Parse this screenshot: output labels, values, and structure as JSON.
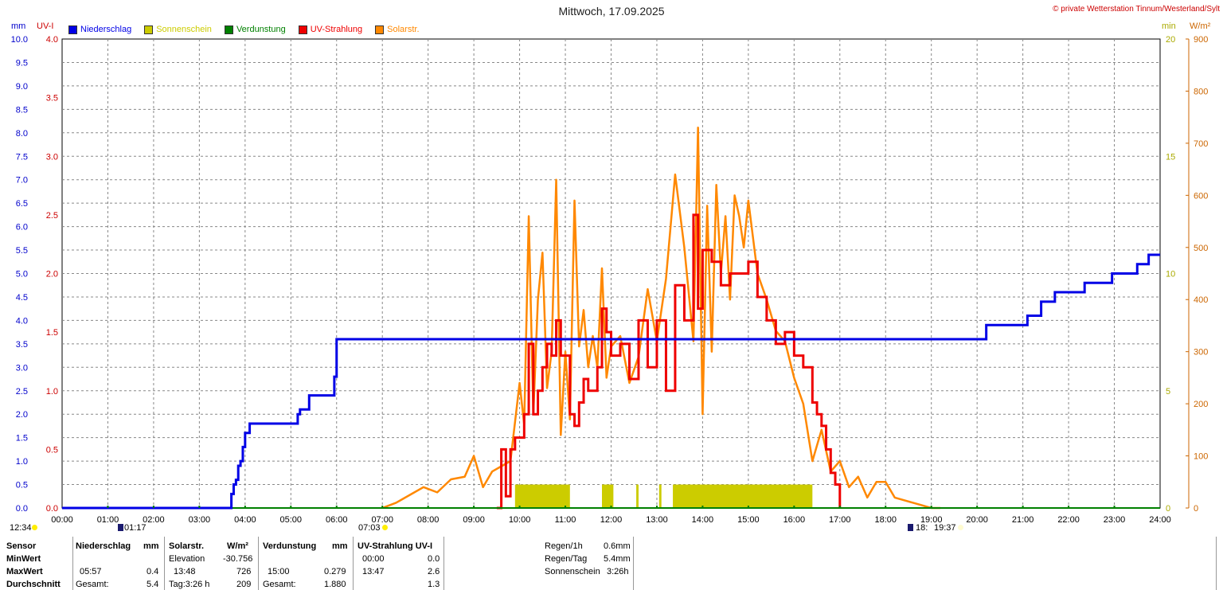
{
  "title": "Mittwoch, 17.09.2025",
  "copyright": "© private Wetterstation Tinnum/Westerland/Sylt",
  "legend": [
    {
      "label": "Niederschlag",
      "color": "#0000e6",
      "text_color": "#0000e6"
    },
    {
      "label": "Sonnenschein",
      "color": "#cccc00",
      "text_color": "#cccc00"
    },
    {
      "label": "Verdunstung",
      "color": "#008000",
      "text_color": "#008000"
    },
    {
      "label": "UV-Strahlung",
      "color": "#ee0000",
      "text_color": "#ee0000"
    },
    {
      "label": "Solarstr.",
      "color": "#ff8800",
      "text_color": "#ff8800"
    }
  ],
  "units": {
    "mm": "mm",
    "uvi": "UV-I",
    "min": "min",
    "wm2": "W/m²"
  },
  "sun_marks": {
    "left_time": "12:34",
    "rise_label": "01:17",
    "rise_time": "07:03",
    "set_label": "18:",
    "set_time": "19:37"
  },
  "chart_data": {
    "type": "line",
    "title": "Mittwoch, 17.09.2025",
    "x_ticks": [
      "00:00",
      "01:00",
      "02:00",
      "03:00",
      "04:00",
      "05:00",
      "06:00",
      "07:00",
      "08:00",
      "09:00",
      "10:00",
      "11:00",
      "12:00",
      "13:00",
      "14:00",
      "15:00",
      "16:00",
      "17:00",
      "18:00",
      "19:00",
      "20:00",
      "21:00",
      "22:00",
      "23:00",
      "24:00"
    ],
    "axes": {
      "mm": {
        "label": "mm",
        "range": [
          0,
          10
        ],
        "ticks": [
          "0.0",
          "0.5",
          "1.0",
          "1.5",
          "2.0",
          "2.5",
          "3.0",
          "3.5",
          "4.0",
          "4.5",
          "5.0",
          "5.5",
          "6.0",
          "6.5",
          "7.0",
          "7.5",
          "8.0",
          "8.5",
          "9.0",
          "9.5",
          "10.0"
        ]
      },
      "uvi": {
        "label": "UV-I",
        "range": [
          0,
          4
        ],
        "ticks": [
          "0.0",
          "0.5",
          "1.0",
          "1.5",
          "2.0",
          "2.5",
          "3.0",
          "3.5",
          "4.0"
        ]
      },
      "min": {
        "label": "min",
        "range": [
          0,
          20
        ],
        "ticks": [
          "0",
          "5",
          "10",
          "15",
          "20"
        ]
      },
      "wm2": {
        "label": "W/m²",
        "range": [
          0,
          900
        ],
        "ticks": [
          "0",
          "100",
          "200",
          "300",
          "400",
          "500",
          "600",
          "700",
          "800",
          "900"
        ]
      }
    },
    "grid": true,
    "series": [
      {
        "name": "Niederschlag",
        "axis": "mm",
        "color": "#0000e6",
        "x": [
          0,
          3.65,
          3.7,
          3.75,
          3.8,
          3.85,
          3.9,
          3.95,
          4.0,
          4.1,
          5.1,
          5.15,
          5.2,
          5.35,
          5.4,
          5.9,
          5.95,
          6.0,
          20.15,
          20.2,
          21.05,
          21.1,
          21.35,
          21.4,
          21.65,
          21.7,
          22.3,
          22.35,
          22.9,
          22.95,
          23.45,
          23.5,
          23.7,
          23.75,
          24.0
        ],
        "y": [
          0,
          0,
          0.3,
          0.5,
          0.6,
          0.9,
          1.0,
          1.3,
          1.6,
          1.8,
          1.8,
          2.0,
          2.1,
          2.1,
          2.4,
          2.4,
          2.8,
          3.6,
          3.6,
          3.9,
          3.9,
          4.1,
          4.1,
          4.4,
          4.4,
          4.6,
          4.6,
          4.8,
          4.8,
          5.0,
          5.0,
          5.2,
          5.2,
          5.4,
          5.4
        ]
      },
      {
        "name": "Solarstr.",
        "axis": "wm2",
        "color": "#ff8800",
        "x": [
          7.0,
          7.3,
          7.6,
          7.9,
          8.2,
          8.5,
          8.8,
          9.0,
          9.2,
          9.4,
          9.6,
          9.8,
          10.0,
          10.1,
          10.2,
          10.3,
          10.4,
          10.5,
          10.6,
          10.7,
          10.8,
          10.9,
          11.0,
          11.1,
          11.2,
          11.3,
          11.4,
          11.5,
          11.6,
          11.7,
          11.8,
          11.9,
          12.0,
          12.2,
          12.4,
          12.6,
          12.8,
          13.0,
          13.2,
          13.4,
          13.6,
          13.8,
          13.9,
          14.0,
          14.1,
          14.2,
          14.3,
          14.4,
          14.5,
          14.6,
          14.7,
          14.8,
          14.9,
          15.0,
          15.2,
          15.4,
          15.6,
          15.8,
          16.0,
          16.2,
          16.4,
          16.6,
          16.8,
          17.0,
          17.2,
          17.4,
          17.6,
          17.8,
          18.0,
          18.2,
          18.4,
          18.6,
          18.8,
          19.0,
          19.2
        ],
        "y": [
          0,
          10,
          25,
          40,
          30,
          55,
          60,
          100,
          40,
          70,
          80,
          90,
          240,
          160,
          560,
          180,
          400,
          490,
          230,
          300,
          630,
          140,
          300,
          170,
          590,
          310,
          380,
          270,
          330,
          270,
          460,
          250,
          310,
          330,
          240,
          290,
          420,
          320,
          440,
          640,
          500,
          320,
          730,
          180,
          580,
          300,
          620,
          450,
          560,
          400,
          600,
          560,
          500,
          590,
          450,
          400,
          340,
          320,
          250,
          200,
          90,
          150,
          70,
          90,
          40,
          60,
          20,
          50,
          50,
          20,
          15,
          10,
          5,
          0,
          0
        ]
      },
      {
        "name": "UV-Strahlung",
        "axis": "uvi",
        "color": "#ee0000",
        "x": [
          9.5,
          9.6,
          9.7,
          9.8,
          9.9,
          10.0,
          10.1,
          10.2,
          10.3,
          10.4,
          10.5,
          10.6,
          10.7,
          10.8,
          10.9,
          11.0,
          11.1,
          11.2,
          11.3,
          11.4,
          11.5,
          11.6,
          11.7,
          11.8,
          11.9,
          12.0,
          12.2,
          12.4,
          12.6,
          12.8,
          13.0,
          13.2,
          13.4,
          13.6,
          13.8,
          13.9,
          14.0,
          14.2,
          14.4,
          14.6,
          14.8,
          15.0,
          15.2,
          15.4,
          15.6,
          15.8,
          16.0,
          16.2,
          16.4,
          16.5,
          16.6,
          16.7,
          16.8,
          16.9,
          17.0
        ],
        "y": [
          0,
          0.5,
          0.1,
          0.5,
          0.6,
          0.6,
          0.8,
          1.4,
          0.8,
          1.0,
          1.2,
          1.4,
          1.3,
          1.6,
          1.3,
          1.3,
          0.8,
          0.7,
          0.9,
          1.1,
          1.0,
          1.0,
          1.2,
          1.7,
          1.5,
          1.3,
          1.4,
          1.1,
          1.6,
          1.2,
          1.6,
          1.0,
          1.9,
          1.6,
          2.5,
          1.7,
          2.2,
          2.1,
          1.9,
          2.0,
          2.0,
          2.1,
          1.8,
          1.6,
          1.4,
          1.5,
          1.3,
          1.2,
          0.9,
          0.8,
          0.7,
          0.5,
          0.3,
          0.2,
          0.0
        ]
      },
      {
        "name": "Verdunstung",
        "axis": "mm",
        "color": "#008000",
        "x": [
          0,
          6.0,
          15.0,
          24.0
        ],
        "y": [
          0,
          0,
          0,
          0
        ]
      },
      {
        "name": "Sonnenschein",
        "axis": "min",
        "color": "#cccc00",
        "bars": [
          [
            9.9,
            11.1
          ],
          [
            11.8,
            12.05
          ],
          [
            12.55,
            12.6
          ],
          [
            13.05,
            13.1
          ],
          [
            13.35,
            16.4
          ]
        ],
        "value": 1.0
      }
    ]
  },
  "stats": {
    "headers": {
      "sensor": "Sensor",
      "niederschlag": "Niederschlag",
      "mm1": "mm",
      "solar": "Solarstr.",
      "wm2": "W/m²",
      "verdunstung": "Verdunstung",
      "mm2": "mm",
      "uv": "UV-Strahlung UV-I"
    },
    "rows": [
      {
        "label": "MinWert",
        "n_time": "",
        "n_val": "",
        "s_time": "Elevation",
        "s_val": "-30.756",
        "v_time": "",
        "v_val": "",
        "u_time": "00:00",
        "u_val": "0.0"
      },
      {
        "label": "MaxWert",
        "n_time": "05:57",
        "n_val": "0.4",
        "s_time": "13:48",
        "s_val": "726",
        "v_time": "15:00",
        "v_val": "0.279",
        "u_time": "13:47",
        "u_val": "2.6"
      },
      {
        "label": "Durchschnitt",
        "n_time": "Gesamt:",
        "n_val": "5.4",
        "s_time": "Tag:3:26 h",
        "s_val": "209",
        "v_time": "Gesamt:",
        "v_val": "1.880",
        "u_time": "",
        "u_val": "1.3"
      }
    ],
    "extra": [
      {
        "label": "Regen/1h",
        "value": "0.6mm"
      },
      {
        "label": "Regen/Tag",
        "value": "5.4mm"
      },
      {
        "label": "Sonnenschein",
        "value": "3:26h"
      }
    ]
  }
}
